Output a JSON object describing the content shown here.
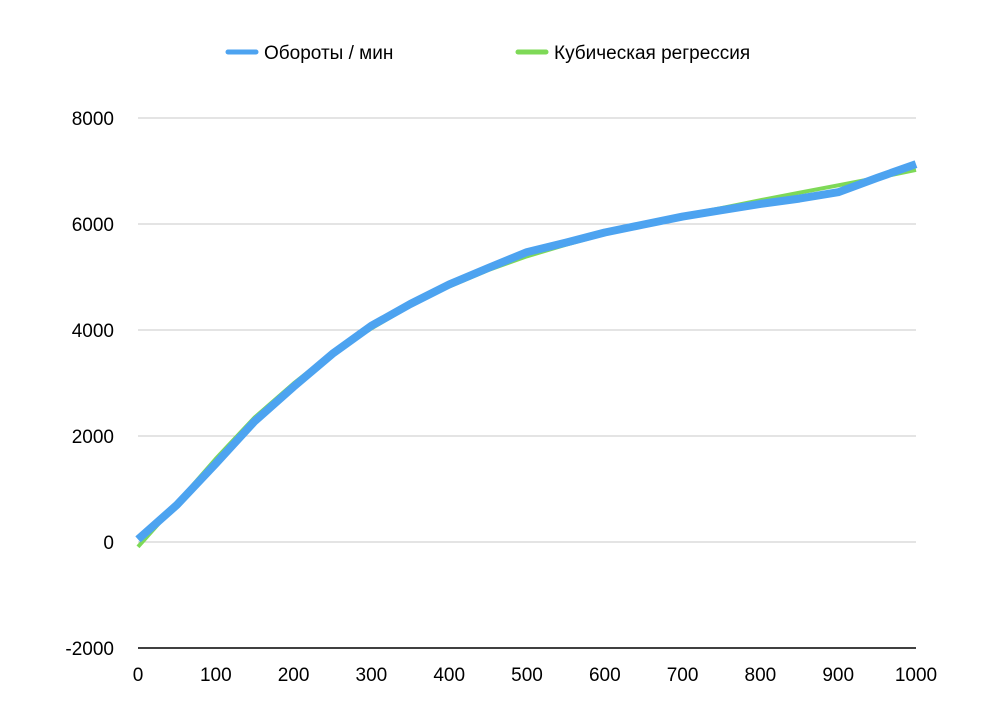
{
  "chart_data": {
    "type": "line",
    "title": "",
    "xlabel": "",
    "ylabel": "",
    "xlim": [
      0,
      1000
    ],
    "ylim": [
      -2000,
      8000
    ],
    "x_ticks": [
      "0",
      "100",
      "200",
      "300",
      "400",
      "500",
      "600",
      "700",
      "800",
      "900",
      "1000"
    ],
    "y_ticks": [
      "8000",
      "6000",
      "4000",
      "2000",
      "0",
      "-2000"
    ],
    "grid": true,
    "legend_position": "top",
    "series": [
      {
        "name": "Кубическая регрессия",
        "color": "#7ed957",
        "x": [
          0,
          50,
          100,
          150,
          200,
          250,
          300,
          350,
          400,
          450,
          500,
          550,
          600,
          650,
          700,
          750,
          800,
          850,
          900,
          950,
          1000
        ],
        "values": [
          -90,
          730,
          1570,
          2350,
          2990,
          3570,
          4030,
          4460,
          4820,
          5130,
          5390,
          5610,
          5810,
          6000,
          6160,
          6300,
          6450,
          6590,
          6730,
          6870,
          7020
        ]
      },
      {
        "name": "Обороты / мин",
        "color": "#4da3f0",
        "x": [
          0,
          50,
          100,
          150,
          200,
          250,
          300,
          350,
          400,
          450,
          500,
          550,
          600,
          650,
          700,
          750,
          800,
          850,
          900,
          950,
          1000
        ],
        "values": [
          50,
          700,
          1480,
          2280,
          2930,
          3550,
          4080,
          4490,
          4860,
          5170,
          5470,
          5650,
          5840,
          5990,
          6140,
          6260,
          6380,
          6480,
          6600,
          6870,
          7130
        ]
      }
    ]
  }
}
